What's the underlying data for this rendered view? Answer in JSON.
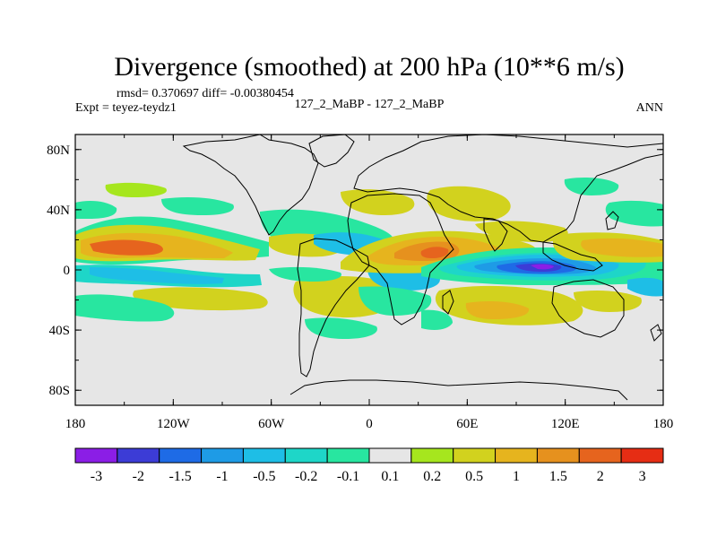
{
  "chart_data": {
    "type": "heatmap",
    "title": "Divergence (smoothed) at 200 hPa (10**6 m/s)",
    "stats": "rmsd= 0.370697 diff= -0.00380454",
    "experiment": "Expt = teyez-teydz1",
    "comparison": "127_2_MaBP - 127_2_MaBP",
    "season": "ANN",
    "x_ticks": [
      "180",
      "120W",
      "60W",
      "0",
      "60E",
      "120E",
      "180"
    ],
    "y_ticks": [
      "80N",
      "40N",
      "0",
      "40S",
      "80S"
    ],
    "x_range": [
      -180,
      180
    ],
    "y_range": [
      -90,
      90
    ],
    "colorbar": {
      "labels": [
        "-3",
        "-2",
        "-1.5",
        "-1",
        "-0.5",
        "-0.2",
        "-0.1",
        "0.1",
        "0.2",
        "0.5",
        "1",
        "1.5",
        "2",
        "3"
      ],
      "colors": [
        "#8b1ee6",
        "#3c3cd6",
        "#1e6be6",
        "#1e9be6",
        "#1ebee6",
        "#1ed6c8",
        "#28e6a0",
        "#e6e6e6",
        "#a6e61e",
        "#d2d21e",
        "#e6b41e",
        "#e6911e",
        "#e6641e",
        "#e62d14"
      ]
    },
    "features": [
      {
        "name": "strong-convergence-indian-ocean",
        "lon": 105,
        "lat": 0,
        "value": -3
      },
      {
        "name": "divergence-africa-equator",
        "lon": 40,
        "lat": 5,
        "value": 1.5
      },
      {
        "name": "divergence-pacific",
        "lon": -160,
        "lat": 10,
        "value": 1.5
      },
      {
        "name": "divergence-south-america",
        "lon": -55,
        "lat": -15,
        "value": 0.5
      }
    ]
  }
}
